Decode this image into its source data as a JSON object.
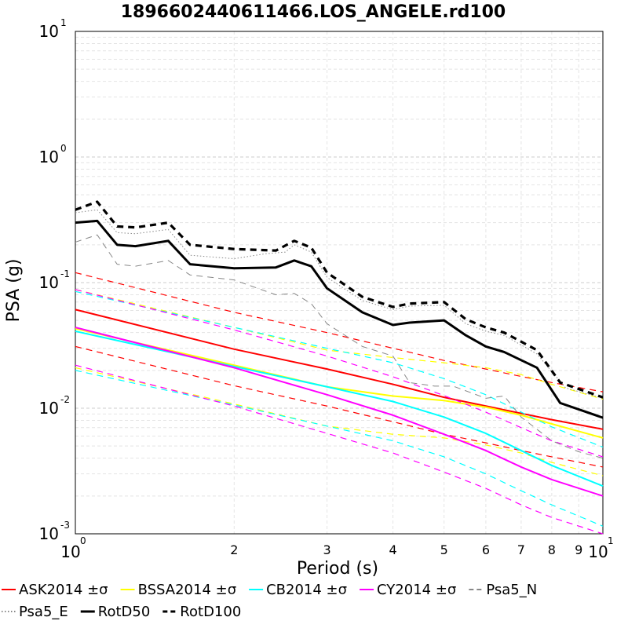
{
  "chart_data": {
    "type": "line",
    "title": "1896602440611466.LOS_ANGELE.rd100",
    "xlabel": "Period (s)",
    "ylabel": "PSA (g)",
    "x_scale": "log",
    "y_scale": "log",
    "xlim": [
      1,
      10
    ],
    "ylim": [
      0.001,
      10
    ],
    "grid": true,
    "legend_position": "bottom",
    "x_ticks": [
      {
        "value": 1,
        "base": "10",
        "exp": "0",
        "major": true
      },
      {
        "value": 2,
        "label": "2"
      },
      {
        "value": 3,
        "label": "3"
      },
      {
        "value": 4,
        "label": "4"
      },
      {
        "value": 5,
        "label": "5"
      },
      {
        "value": 6,
        "label": "6"
      },
      {
        "value": 7,
        "label": "7"
      },
      {
        "value": 8,
        "label": "8"
      },
      {
        "value": 9,
        "label": "9"
      },
      {
        "value": 10,
        "base": "10",
        "exp": "1",
        "major": true
      }
    ],
    "y_ticks": [
      {
        "value": 0.001,
        "base": "10",
        "exp": "-3"
      },
      {
        "value": 0.01,
        "base": "10",
        "exp": "-2"
      },
      {
        "value": 0.1,
        "base": "10",
        "exp": "-1"
      },
      {
        "value": 1,
        "base": "10",
        "exp": "0"
      },
      {
        "value": 10,
        "base": "10",
        "exp": "1"
      }
    ],
    "series": [
      {
        "name": "ASK2014 ±σ",
        "color": "#ff0000",
        "style": "solid",
        "width": 2,
        "points": [
          [
            1,
            0.061
          ],
          [
            2,
            0.0295
          ],
          [
            3,
            0.0205
          ],
          [
            4,
            0.0155
          ],
          [
            5,
            0.0122
          ],
          [
            6,
            0.0104
          ],
          [
            7,
            0.0091
          ],
          [
            8,
            0.0081
          ],
          [
            10,
            0.0068
          ]
        ]
      },
      {
        "name": "",
        "color": "#ff0000",
        "style": "dashed",
        "width": 1.2,
        "points": [
          [
            1,
            0.12
          ],
          [
            2,
            0.058
          ],
          [
            3,
            0.04
          ],
          [
            4,
            0.03
          ],
          [
            5,
            0.024
          ],
          [
            6,
            0.0205
          ],
          [
            7,
            0.0179
          ],
          [
            8,
            0.016
          ],
          [
            10,
            0.0135
          ]
        ]
      },
      {
        "name": "",
        "color": "#ff0000",
        "style": "dashed",
        "width": 1.2,
        "points": [
          [
            1,
            0.031
          ],
          [
            2,
            0.0151
          ],
          [
            3,
            0.0104
          ],
          [
            4,
            0.0078
          ],
          [
            5,
            0.0062
          ],
          [
            6,
            0.0053
          ],
          [
            7,
            0.0046
          ],
          [
            8,
            0.0041
          ],
          [
            10,
            0.0034
          ]
        ]
      },
      {
        "name": "BSSA2014 ±σ",
        "color": "#ffff00",
        "style": "solid",
        "width": 2,
        "points": [
          [
            1,
            0.043
          ],
          [
            2,
            0.022
          ],
          [
            3,
            0.0148
          ],
          [
            4,
            0.0125
          ],
          [
            5,
            0.0115
          ],
          [
            6,
            0.0102
          ],
          [
            7,
            0.0088
          ],
          [
            8,
            0.0075
          ],
          [
            10,
            0.0058
          ]
        ]
      },
      {
        "name": "",
        "color": "#ffff00",
        "style": "dashed",
        "width": 1.2,
        "points": [
          [
            1,
            0.088
          ],
          [
            2,
            0.044
          ],
          [
            3,
            0.029
          ],
          [
            4,
            0.0253
          ],
          [
            5,
            0.023
          ],
          [
            6,
            0.021
          ],
          [
            7,
            0.0185
          ],
          [
            8,
            0.0155
          ],
          [
            10,
            0.0118
          ]
        ]
      },
      {
        "name": "",
        "color": "#ffff00",
        "style": "dashed",
        "width": 1.2,
        "points": [
          [
            1,
            0.021
          ],
          [
            2,
            0.0108
          ],
          [
            3,
            0.0072
          ],
          [
            4,
            0.0062
          ],
          [
            5,
            0.0058
          ],
          [
            6,
            0.0051
          ],
          [
            7,
            0.0044
          ],
          [
            8,
            0.0037
          ],
          [
            10,
            0.0029
          ]
        ]
      },
      {
        "name": "CB2014 ±σ",
        "color": "#00ffff",
        "style": "solid",
        "width": 2,
        "points": [
          [
            1,
            0.041
          ],
          [
            2,
            0.0215
          ],
          [
            3,
            0.0148
          ],
          [
            4,
            0.0113
          ],
          [
            5,
            0.0085
          ],
          [
            6,
            0.0063
          ],
          [
            7,
            0.0046
          ],
          [
            8,
            0.0035
          ],
          [
            10,
            0.0024
          ]
        ]
      },
      {
        "name": "",
        "color": "#00ffff",
        "style": "dashed",
        "width": 1.2,
        "points": [
          [
            1,
            0.085
          ],
          [
            2,
            0.044
          ],
          [
            3,
            0.03
          ],
          [
            4,
            0.023
          ],
          [
            5,
            0.0172
          ],
          [
            6,
            0.0128
          ],
          [
            7,
            0.0093
          ],
          [
            8,
            0.0071
          ],
          [
            10,
            0.0049
          ]
        ]
      },
      {
        "name": "",
        "color": "#00ffff",
        "style": "dashed",
        "width": 1.2,
        "points": [
          [
            1,
            0.02
          ],
          [
            2,
            0.0106
          ],
          [
            3,
            0.0072
          ],
          [
            4,
            0.0055
          ],
          [
            5,
            0.0041
          ],
          [
            6,
            0.003
          ],
          [
            7,
            0.0022
          ],
          [
            8,
            0.0017
          ],
          [
            10,
            0.00115
          ]
        ]
      },
      {
        "name": "CY2014 ±σ",
        "color": "#ff00ff",
        "style": "solid",
        "width": 2,
        "points": [
          [
            1,
            0.044
          ],
          [
            2,
            0.021
          ],
          [
            3,
            0.0128
          ],
          [
            4,
            0.0088
          ],
          [
            5,
            0.0062
          ],
          [
            6,
            0.0046
          ],
          [
            7,
            0.0034
          ],
          [
            8,
            0.0027
          ],
          [
            10,
            0.002
          ]
        ]
      },
      {
        "name": "",
        "color": "#ff00ff",
        "style": "dashed",
        "width": 1.2,
        "points": [
          [
            1,
            0.088
          ],
          [
            2,
            0.042
          ],
          [
            3,
            0.026
          ],
          [
            4,
            0.0178
          ],
          [
            5,
            0.0126
          ],
          [
            6,
            0.0093
          ],
          [
            7,
            0.007
          ],
          [
            8,
            0.0055
          ],
          [
            10,
            0.0041
          ]
        ]
      },
      {
        "name": "",
        "color": "#ff00ff",
        "style": "dashed",
        "width": 1.2,
        "points": [
          [
            1,
            0.022
          ],
          [
            2,
            0.0104
          ],
          [
            3,
            0.0063
          ],
          [
            4,
            0.0044
          ],
          [
            5,
            0.0031
          ],
          [
            6,
            0.0023
          ],
          [
            7,
            0.0017
          ],
          [
            8,
            0.00135
          ],
          [
            10,
            0.001
          ]
        ]
      },
      {
        "name": "Psa5_N",
        "color": "#888888",
        "style": "dashed",
        "width": 1,
        "points": [
          [
            1,
            0.21
          ],
          [
            1.1,
            0.24
          ],
          [
            1.2,
            0.14
          ],
          [
            1.3,
            0.135
          ],
          [
            1.5,
            0.15
          ],
          [
            1.65,
            0.115
          ],
          [
            2,
            0.105
          ],
          [
            2.4,
            0.08
          ],
          [
            2.6,
            0.082
          ],
          [
            2.8,
            0.068
          ],
          [
            3,
            0.047
          ],
          [
            3.5,
            0.031
          ],
          [
            4,
            0.026
          ],
          [
            4.3,
            0.016
          ],
          [
            4.8,
            0.015
          ],
          [
            5.2,
            0.015
          ],
          [
            6,
            0.012
          ],
          [
            6.5,
            0.0125
          ],
          [
            7,
            0.0085
          ],
          [
            8,
            0.0055
          ],
          [
            9,
            0.0045
          ],
          [
            10,
            0.004
          ]
        ]
      },
      {
        "name": "Psa5_E",
        "color": "#888888",
        "style": "dotted",
        "width": 1,
        "points": [
          [
            1,
            0.36
          ],
          [
            1.1,
            0.38
          ],
          [
            1.2,
            0.25
          ],
          [
            1.3,
            0.245
          ],
          [
            1.5,
            0.265
          ],
          [
            1.65,
            0.165
          ],
          [
            2,
            0.155
          ],
          [
            2.3,
            0.17
          ],
          [
            2.5,
            0.175
          ],
          [
            2.6,
            0.2
          ],
          [
            2.8,
            0.175
          ],
          [
            3,
            0.11
          ],
          [
            3.5,
            0.072
          ],
          [
            4,
            0.061
          ],
          [
            4.3,
            0.065
          ],
          [
            5,
            0.066
          ],
          [
            5.5,
            0.047
          ],
          [
            6,
            0.041
          ],
          [
            6.5,
            0.038
          ],
          [
            7.5,
            0.027
          ],
          [
            8.5,
            0.0145
          ],
          [
            10,
            0.012
          ]
        ]
      },
      {
        "name": "RotD50",
        "color": "#000000",
        "style": "solid",
        "width": 3,
        "points": [
          [
            1,
            0.3
          ],
          [
            1.1,
            0.31
          ],
          [
            1.2,
            0.2
          ],
          [
            1.3,
            0.195
          ],
          [
            1.5,
            0.215
          ],
          [
            1.65,
            0.14
          ],
          [
            2,
            0.13
          ],
          [
            2.4,
            0.132
          ],
          [
            2.6,
            0.15
          ],
          [
            2.8,
            0.135
          ],
          [
            3,
            0.09
          ],
          [
            3.5,
            0.058
          ],
          [
            4,
            0.046
          ],
          [
            4.3,
            0.048
          ],
          [
            5,
            0.05
          ],
          [
            5.5,
            0.038
          ],
          [
            6,
            0.031
          ],
          [
            6.5,
            0.028
          ],
          [
            7.5,
            0.021
          ],
          [
            8.3,
            0.011
          ],
          [
            10,
            0.0084
          ]
        ]
      },
      {
        "name": "RotD100",
        "color": "#000000",
        "style": "dashed",
        "width": 3.2,
        "points": [
          [
            1,
            0.38
          ],
          [
            1.1,
            0.44
          ],
          [
            1.2,
            0.28
          ],
          [
            1.3,
            0.275
          ],
          [
            1.5,
            0.3
          ],
          [
            1.65,
            0.2
          ],
          [
            2,
            0.185
          ],
          [
            2.4,
            0.18
          ],
          [
            2.6,
            0.215
          ],
          [
            2.8,
            0.19
          ],
          [
            3,
            0.12
          ],
          [
            3.5,
            0.077
          ],
          [
            4,
            0.064
          ],
          [
            4.3,
            0.068
          ],
          [
            5,
            0.07
          ],
          [
            5.5,
            0.051
          ],
          [
            6,
            0.044
          ],
          [
            6.5,
            0.04
          ],
          [
            7.5,
            0.029
          ],
          [
            8.3,
            0.016
          ],
          [
            10,
            0.0122
          ]
        ]
      }
    ],
    "legend": [
      {
        "label": "ASK2014 ±σ",
        "color": "#ff0000",
        "style": "solid"
      },
      {
        "label": "BSSA2014 ±σ",
        "color": "#ffff00",
        "style": "solid"
      },
      {
        "label": "CB2014 ±σ",
        "color": "#00ffff",
        "style": "solid"
      },
      {
        "label": "CY2014 ±σ",
        "color": "#ff00ff",
        "style": "solid"
      },
      {
        "label": "Psa5_N",
        "color": "#888888",
        "style": "dashed"
      },
      {
        "label": "Psa5_E",
        "color": "#888888",
        "style": "dotted"
      },
      {
        "label": "RotD50",
        "color": "#000000",
        "style": "solid"
      },
      {
        "label": "RotD100",
        "color": "#000000",
        "style": "dashed"
      }
    ]
  }
}
